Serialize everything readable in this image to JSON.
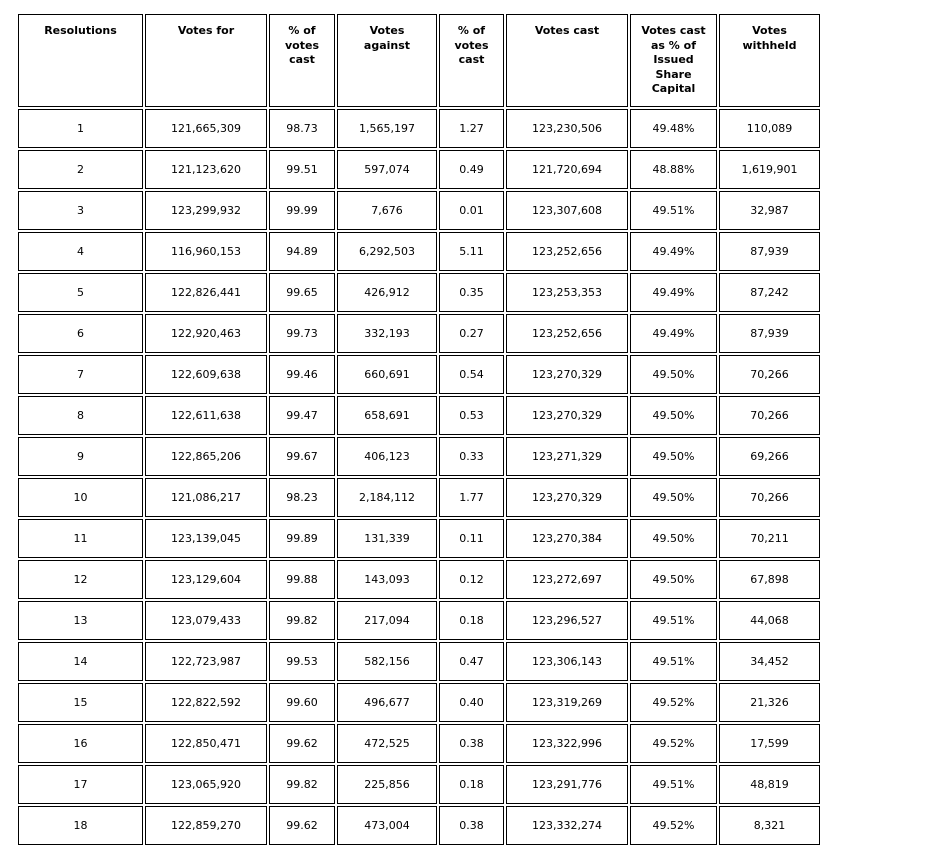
{
  "table": {
    "columns": [
      "Resolutions",
      "Votes for",
      "% of\nvotes\ncast",
      "Votes\nagainst",
      "% of\nvotes\ncast",
      "Votes cast",
      "Votes cast\nas % of\nIssued\nShare\nCapital",
      "Votes\nwithheld"
    ],
    "rows": [
      [
        "1",
        "121,665,309",
        "98.73",
        "1,565,197",
        "1.27",
        "123,230,506",
        "49.48%",
        "110,089"
      ],
      [
        "2",
        "121,123,620",
        "99.51",
        "597,074",
        "0.49",
        "121,720,694",
        "48.88%",
        "1,619,901"
      ],
      [
        "3",
        "123,299,932",
        "99.99",
        "7,676",
        "0.01",
        "123,307,608",
        "49.51%",
        "32,987"
      ],
      [
        "4",
        "116,960,153",
        "94.89",
        "6,292,503",
        "5.11",
        "123,252,656",
        "49.49%",
        "87,939"
      ],
      [
        "5",
        "122,826,441",
        "99.65",
        "426,912",
        "0.35",
        "123,253,353",
        "49.49%",
        "87,242"
      ],
      [
        "6",
        "122,920,463",
        "99.73",
        "332,193",
        "0.27",
        "123,252,656",
        "49.49%",
        "87,939"
      ],
      [
        "7",
        "122,609,638",
        "99.46",
        "660,691",
        "0.54",
        "123,270,329",
        "49.50%",
        "70,266"
      ],
      [
        "8",
        "122,611,638",
        "99.47",
        "658,691",
        "0.53",
        "123,270,329",
        "49.50%",
        "70,266"
      ],
      [
        "9",
        "122,865,206",
        "99.67",
        "406,123",
        "0.33",
        "123,271,329",
        "49.50%",
        "69,266"
      ],
      [
        "10",
        "121,086,217",
        "98.23",
        "2,184,112",
        "1.77",
        "123,270,329",
        "49.50%",
        "70,266"
      ],
      [
        "11",
        "123,139,045",
        "99.89",
        "131,339",
        "0.11",
        "123,270,384",
        "49.50%",
        "70,211"
      ],
      [
        "12",
        "123,129,604",
        "99.88",
        "143,093",
        "0.12",
        "123,272,697",
        "49.50%",
        "67,898"
      ],
      [
        "13",
        "123,079,433",
        "99.82",
        "217,094",
        "0.18",
        "123,296,527",
        "49.51%",
        "44,068"
      ],
      [
        "14",
        "122,723,987",
        "99.53",
        "582,156",
        "0.47",
        "123,306,143",
        "49.51%",
        "34,452"
      ],
      [
        "15",
        "122,822,592",
        "99.60",
        "496,677",
        "0.40",
        "123,319,269",
        "49.52%",
        "21,326"
      ],
      [
        "16",
        "122,850,471",
        "99.62",
        "472,525",
        "0.38",
        "123,322,996",
        "49.52%",
        "17,599"
      ],
      [
        "17",
        "123,065,920",
        "99.82",
        "225,856",
        "0.18",
        "123,291,776",
        "49.51%",
        "48,819"
      ],
      [
        "18",
        "122,859,270",
        "99.62",
        "473,004",
        "0.38",
        "123,332,274",
        "49.52%",
        "8,321"
      ]
    ]
  }
}
